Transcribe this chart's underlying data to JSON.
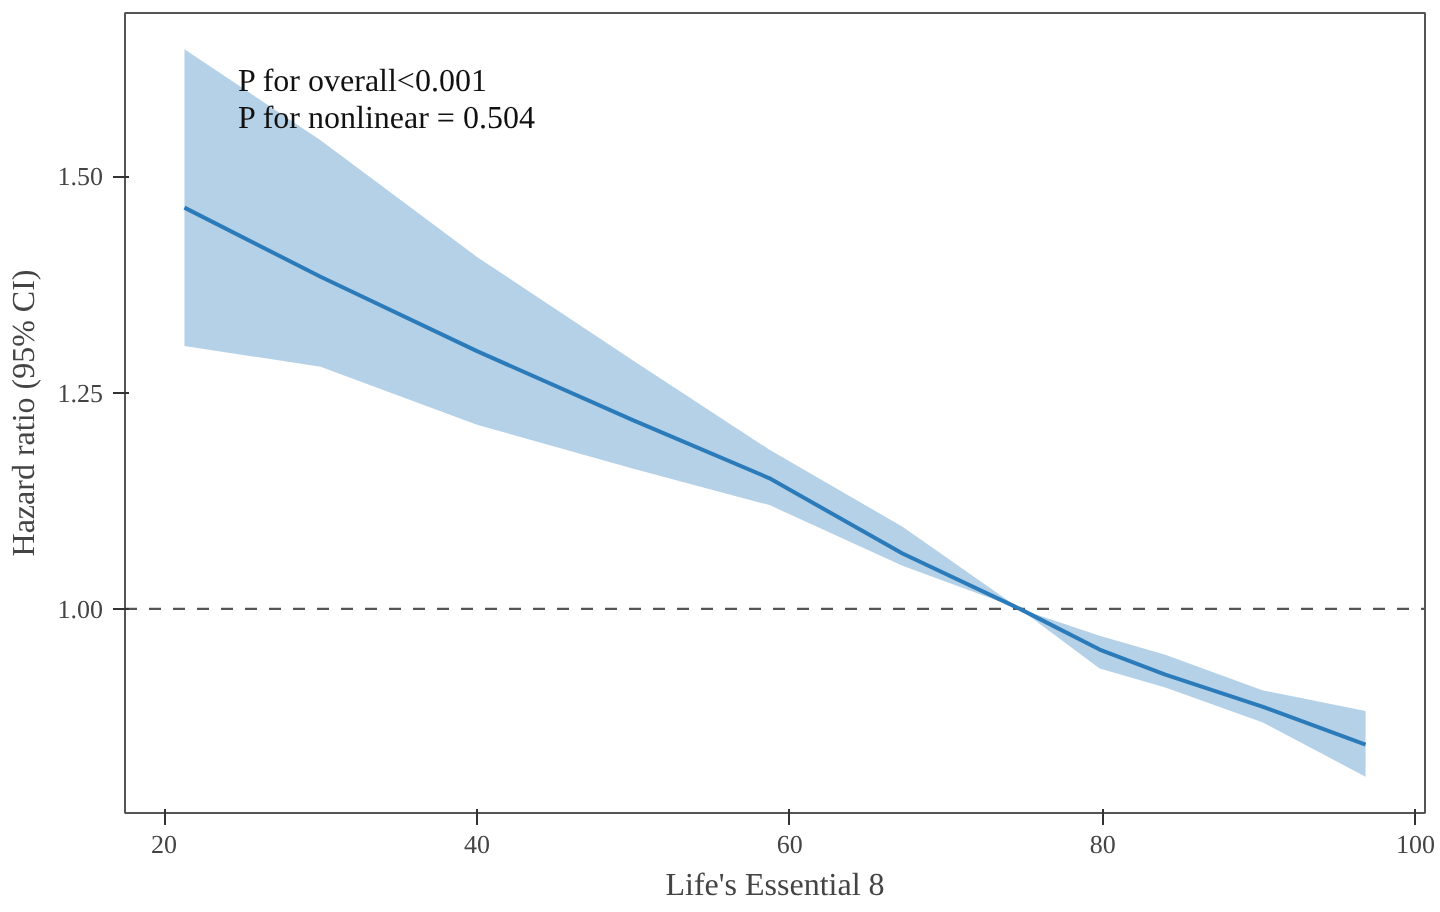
{
  "chart_data": {
    "type": "line",
    "xlabel": "Life's Essential 8",
    "ylabel": "Hazard ratio (95% CI)",
    "xlim": [
      17.5,
      100.6
    ],
    "ylim": [
      0.764,
      1.689
    ],
    "xticks": [
      20,
      40,
      60,
      80,
      100
    ],
    "yticks": [
      {
        "value": 1.0,
        "label": "1.00"
      },
      {
        "value": 1.25,
        "label": "1.25"
      },
      {
        "value": 1.5,
        "label": "1.50"
      }
    ],
    "grid": false,
    "line_style": "solid",
    "annotations": [
      "P for overall<0.001",
      "P for nonlinear = 0.504"
    ],
    "ref_lines": [
      {
        "axis": "y",
        "value": 1.0,
        "line_style": "dashed",
        "color": "#555555"
      }
    ],
    "series": [
      {
        "color": "#2b7bba",
        "x": [
          21.3,
          30,
          40,
          50,
          58.7,
          67.2,
          74.7,
          79.8,
          84,
          90.2,
          96.8
        ],
        "values": [
          1.464,
          1.384,
          1.298,
          1.218,
          1.151,
          1.064,
          1.0,
          0.953,
          0.924,
          0.887,
          0.843
        ],
        "lower": [
          1.304,
          1.28,
          1.213,
          1.162,
          1.12,
          1.05,
          1.0,
          0.931,
          0.909,
          0.869,
          0.806
        ],
        "upper": [
          1.647,
          1.542,
          1.407,
          1.287,
          1.184,
          1.095,
          1.0,
          0.969,
          0.947,
          0.906,
          0.882
        ]
      }
    ]
  }
}
